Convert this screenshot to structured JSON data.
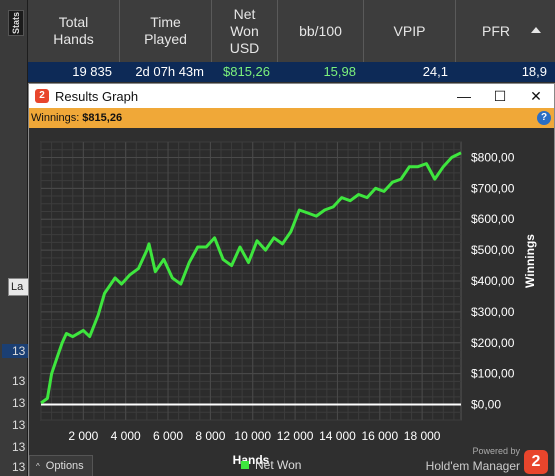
{
  "sidebar": {
    "stats_tab": "Stats",
    "filter_box": "La",
    "row_numbers": [
      "13",
      "13",
      "13",
      "13",
      "13",
      "13"
    ]
  },
  "stats_table": {
    "headers": [
      {
        "label": "Total\nHands"
      },
      {
        "label": "Time\nPlayed"
      },
      {
        "label": "Net\nWon\nUSD"
      },
      {
        "label": "bb/100"
      },
      {
        "label": "VPIP"
      },
      {
        "label": "PFR"
      }
    ],
    "row": {
      "total_hands": "19 835",
      "time_played": "2d 07h 43m",
      "net_won": "$815,26",
      "bb100": "15,98",
      "vpip": "24,1",
      "pfr": "18,9"
    }
  },
  "window": {
    "title": "Results Graph",
    "minimize": "—",
    "maximize": "☐",
    "close": "✕",
    "winnings_label": "Winnings:",
    "winnings_value": "$815,26",
    "help": "?"
  },
  "footer": {
    "options_label": "Options",
    "options_chevron": "^",
    "legend_label": "Net Won",
    "powered_by": "Powered by",
    "brand": "Hold'em Manager",
    "brand_logo": "2"
  },
  "colors": {
    "line": "#3ee63e",
    "zero_line": "#ffffff",
    "accent": "#f0a838",
    "selected_row": "#0d2a57"
  },
  "chart_data": {
    "type": "line",
    "xlabel": "Hands",
    "ylabel": "Winnings",
    "xlim": [
      0,
      19835
    ],
    "ylim": [
      -50,
      850
    ],
    "x_ticks": [
      2000,
      4000,
      6000,
      8000,
      10000,
      12000,
      14000,
      16000,
      18000
    ],
    "x_tick_labels": [
      "2 000",
      "4 000",
      "6 000",
      "8 000",
      "10 000",
      "12 000",
      "14 000",
      "16 000",
      "18 000"
    ],
    "y_ticks": [
      0,
      100,
      200,
      300,
      400,
      500,
      600,
      700,
      800
    ],
    "y_tick_labels": [
      "$0,00",
      "$100,00",
      "$200,00",
      "$300,00",
      "$400,00",
      "$500,00",
      "$600,00",
      "$700,00",
      "$800,00"
    ],
    "grid": true,
    "series": [
      {
        "name": "Net Won",
        "x": [
          0,
          300,
          500,
          800,
          1000,
          1200,
          1500,
          2000,
          2300,
          2700,
          3000,
          3500,
          3800,
          4200,
          4600,
          5000,
          5100,
          5400,
          5800,
          6200,
          6600,
          7000,
          7400,
          7800,
          8200,
          8600,
          9000,
          9400,
          9800,
          10200,
          10600,
          11000,
          11400,
          11800,
          12200,
          12600,
          13000,
          13400,
          13800,
          14200,
          14600,
          15000,
          15400,
          15800,
          16200,
          16600,
          17000,
          17400,
          17800,
          18200,
          18600,
          19000,
          19400,
          19835
        ],
        "y": [
          5,
          20,
          100,
          160,
          200,
          230,
          220,
          240,
          220,
          290,
          360,
          410,
          390,
          420,
          440,
          500,
          520,
          430,
          470,
          410,
          390,
          460,
          510,
          510,
          540,
          470,
          450,
          510,
          460,
          530,
          500,
          540,
          520,
          560,
          630,
          620,
          610,
          630,
          640,
          670,
          660,
          680,
          670,
          700,
          690,
          720,
          730,
          770,
          770,
          780,
          730,
          770,
          800,
          815
        ]
      }
    ]
  }
}
